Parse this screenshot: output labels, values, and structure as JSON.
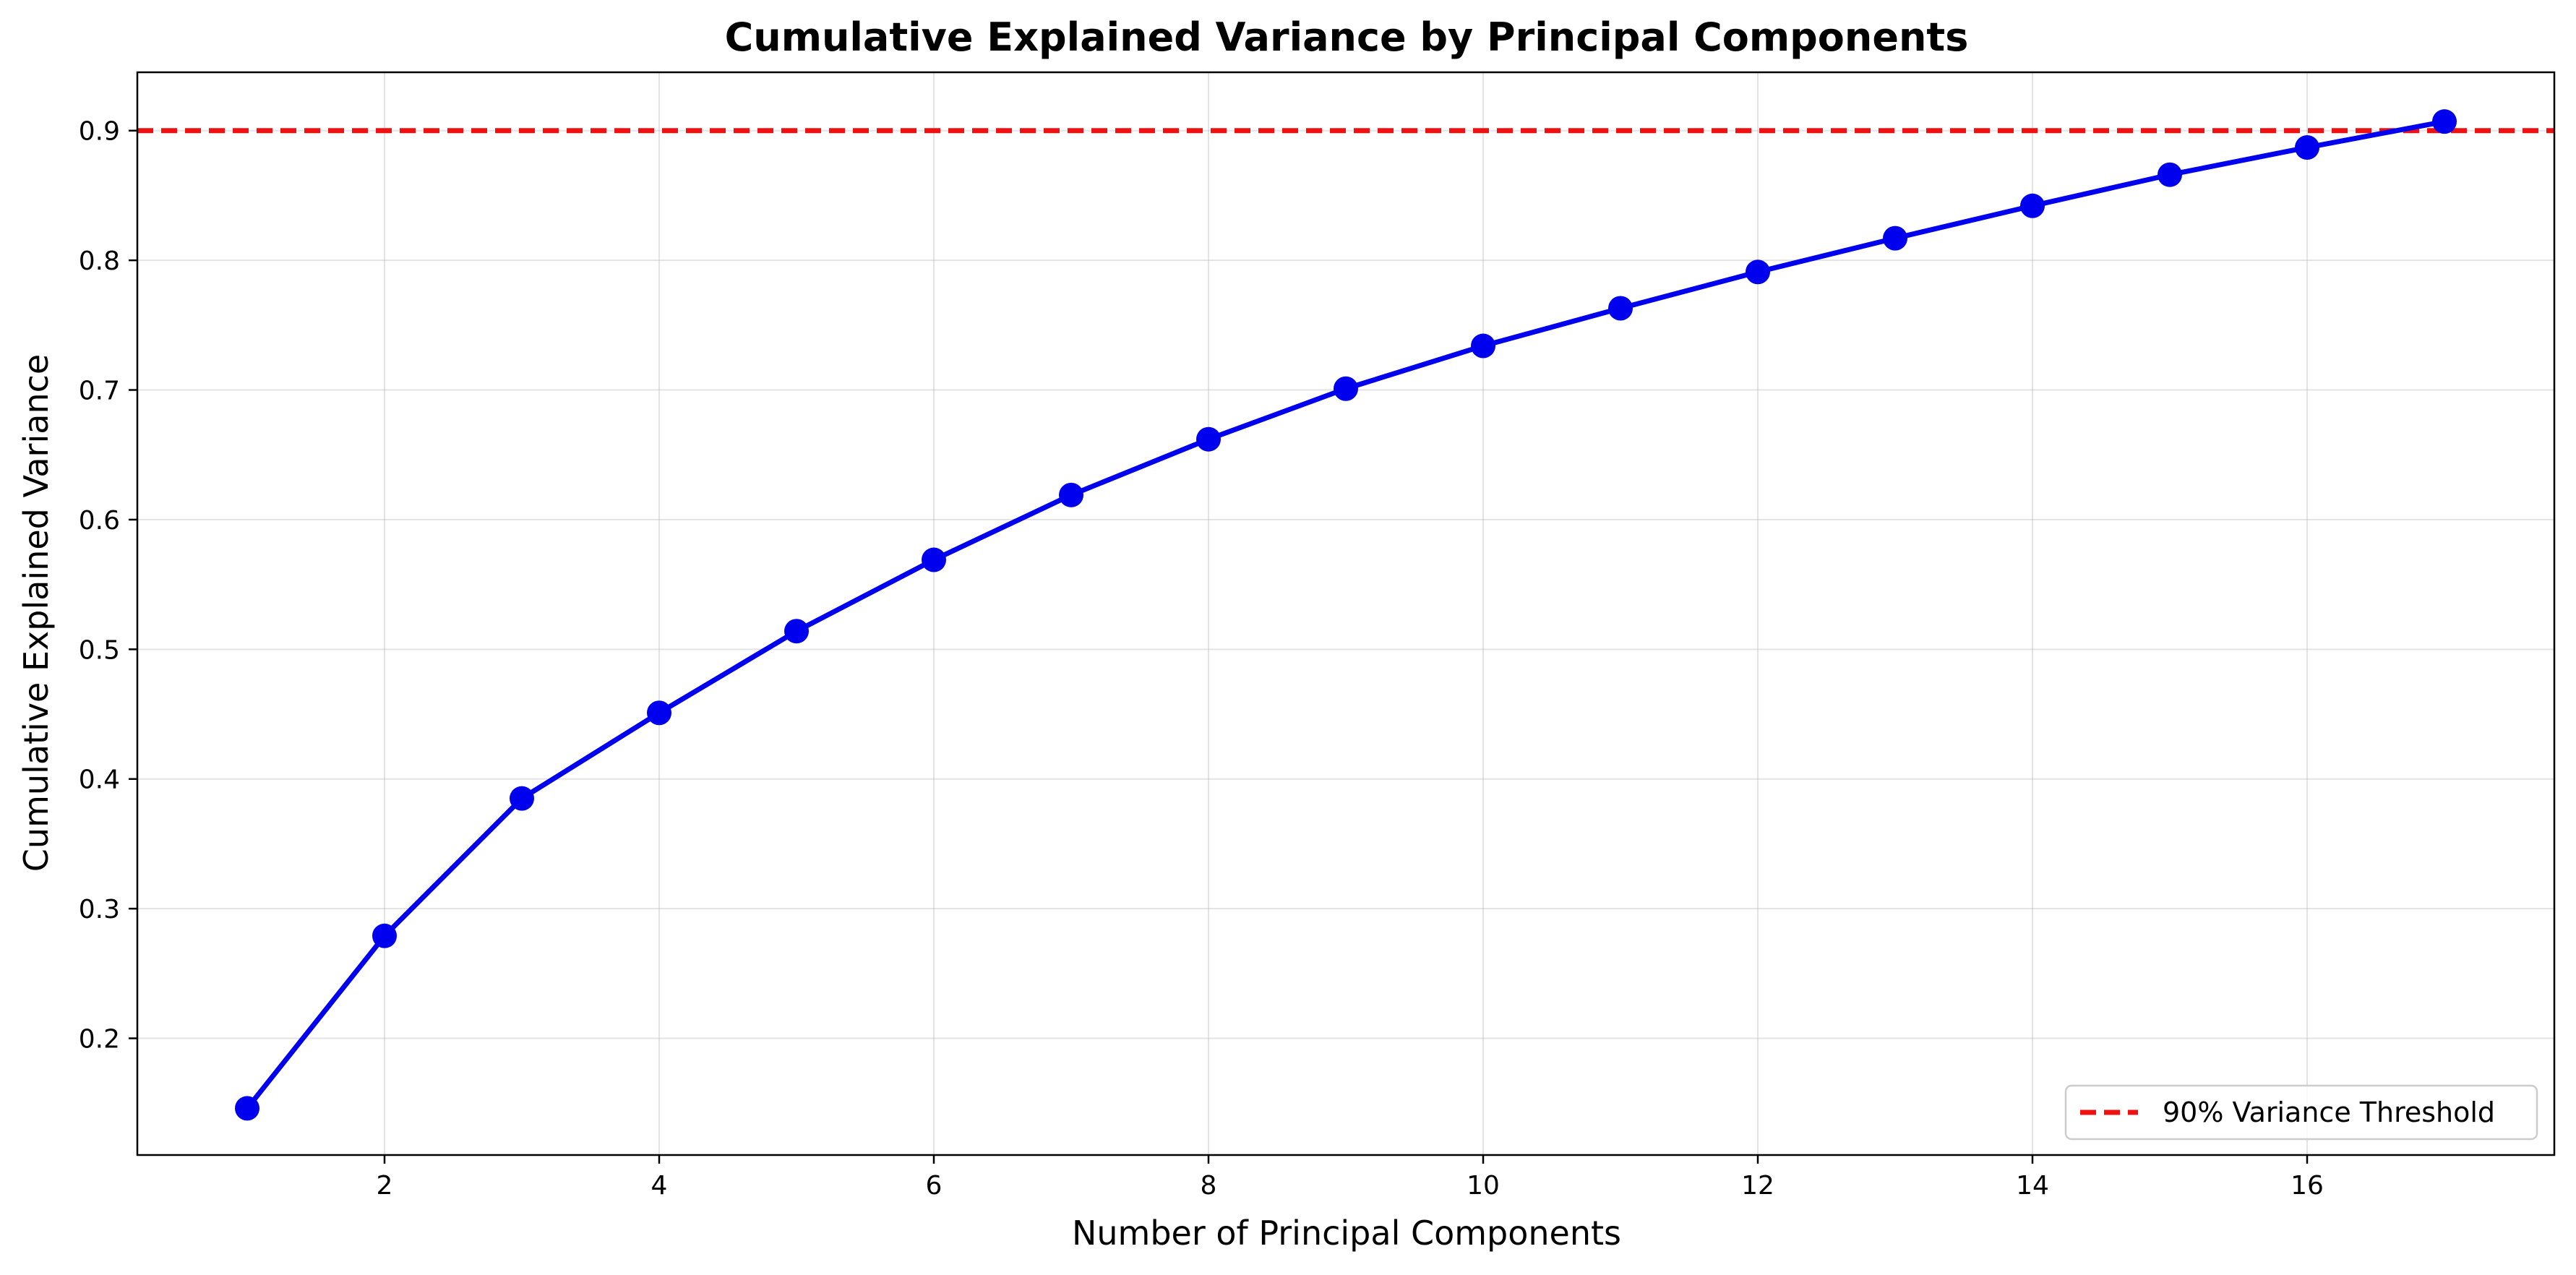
{
  "chart_data": {
    "type": "line",
    "title": "Cumulative Explained Variance by Principal Components",
    "xlabel": "Number of Principal Components",
    "ylabel": "Cumulative Explained Variance",
    "xlim": [
      0.2,
      17.8
    ],
    "ylim": [
      0.11,
      0.945
    ],
    "xticks": [
      2,
      4,
      6,
      8,
      10,
      12,
      14,
      16
    ],
    "yticks": [
      0.2,
      0.3,
      0.4,
      0.5,
      0.6,
      0.7,
      0.8,
      0.9
    ],
    "grid": true,
    "legend_position": "bottom-right",
    "series": [
      {
        "color": "#0000ee",
        "marker": "circle",
        "x": [
          1,
          2,
          3,
          4,
          5,
          6,
          7,
          8,
          9,
          10,
          11,
          12,
          13,
          14,
          15,
          16,
          17
        ],
        "y": [
          0.146,
          0.279,
          0.385,
          0.451,
          0.514,
          0.569,
          0.619,
          0.662,
          0.701,
          0.734,
          0.763,
          0.791,
          0.817,
          0.842,
          0.866,
          0.887,
          0.907
        ]
      }
    ],
    "threshold": {
      "name": "90% Variance Threshold",
      "value": 0.9,
      "color": "#ee1111",
      "style": "dashed"
    }
  }
}
